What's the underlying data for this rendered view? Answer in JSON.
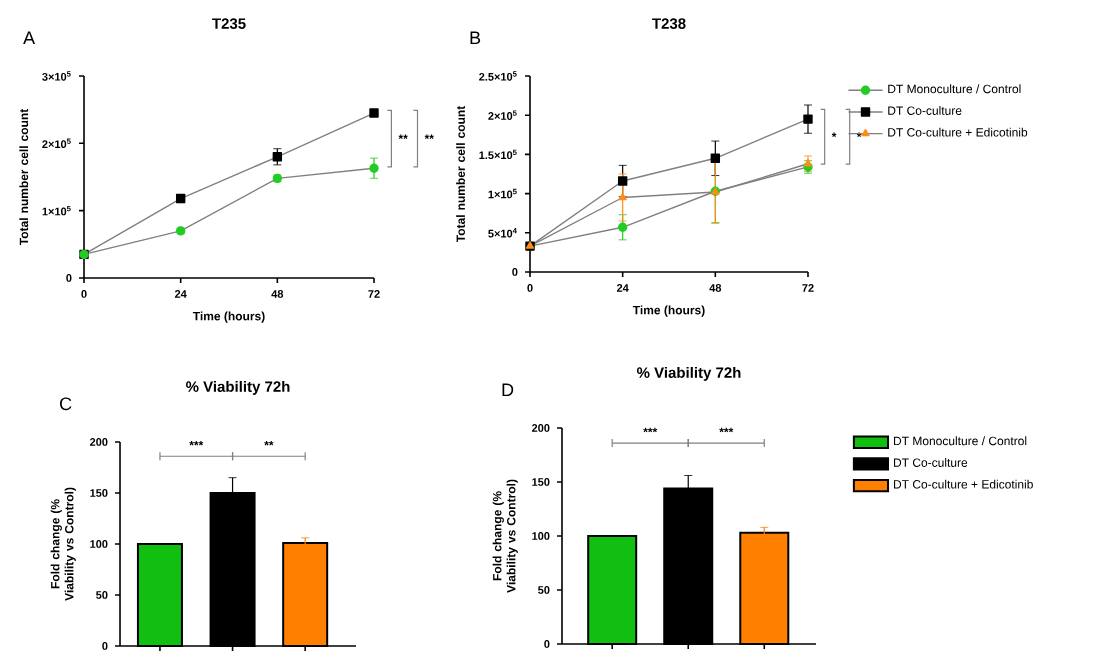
{
  "chart_data": [
    {
      "type": "line",
      "title": "T235",
      "xlabel": "Time (hours)",
      "ylabel": "Total number cell count",
      "x": [
        0,
        24,
        48,
        72
      ],
      "xlim": [
        0,
        72
      ],
      "xticks": [
        0,
        24,
        48,
        72
      ],
      "ylim": [
        0,
        300000
      ],
      "yticks": [
        0,
        {
          "value": 100000,
          "label": "1×10$^{5}$"
        },
        {
          "value": 200000,
          "label": "2×10$^{5}$"
        },
        {
          "value": 300000,
          "label": "3×10$^{5}$"
        }
      ],
      "legend": false,
      "series": [
        {
          "color": "#000000",
          "marker": "square",
          "values": [
            35000,
            118000,
            180000,
            245000
          ],
          "errors": [
            null,
            6000,
            12000,
            5000
          ]
        },
        {
          "color": "#22cc22",
          "marker": "circle",
          "values": [
            35000,
            70000,
            148000,
            163000
          ],
          "errors": [
            null,
            4000,
            5000,
            15000
          ]
        }
      ],
      "annotations": [
        "A",
        "**",
        "**"
      ]
    },
    {
      "type": "line",
      "title": "T238",
      "xlabel": "Time (hours)",
      "ylabel": "Total number cell count",
      "x": [
        0,
        24,
        48,
        72
      ],
      "xlim": [
        0,
        72
      ],
      "xticks": [
        0,
        24,
        48,
        72
      ],
      "ylim": [
        0,
        250000
      ],
      "yticks": [
        0,
        {
          "value": 50000,
          "label": "5×10$^{4}$"
        },
        {
          "value": 100000,
          "label": "1×10$^{5}$"
        },
        {
          "value": 150000,
          "label": "1.5×10$^{5}$"
        },
        {
          "value": 200000,
          "label": "2×10$^{5}$"
        },
        {
          "value": 250000,
          "label": "2.5×10$^{5}$"
        }
      ],
      "legend": "right",
      "series": [
        {
          "name": "DT Monoculture / Control",
          "color": "#22cc22",
          "marker": "circle",
          "values": [
            33000,
            57000,
            103000,
            134000
          ],
          "errors": [
            null,
            16000,
            40000,
            8000
          ]
        },
        {
          "name": "DT Co-culture",
          "color": "#000000",
          "marker": "square",
          "values": [
            33000,
            116000,
            145000,
            195000
          ],
          "errors": [
            null,
            20000,
            22000,
            18000
          ]
        },
        {
          "name": "DT Co-culture + Edicotinib",
          "color": "#ff8c1a",
          "marker": "triangle",
          "values": [
            33000,
            95000,
            102000,
            138000
          ],
          "errors": [
            null,
            30000,
            40000,
            10000
          ]
        }
      ],
      "annotations": [
        "B",
        "*",
        "*"
      ]
    },
    {
      "type": "bar",
      "title": "% Viability 72h",
      "ylabel": "Fold change (% Viability vs Control)",
      "categories": [
        null,
        null,
        null
      ],
      "ylim": [
        0,
        200
      ],
      "yticks": [
        0,
        50,
        100,
        150,
        200
      ],
      "legend": false,
      "series": [
        {
          "color": "#11bf11",
          "values": [
            100,
            null,
            null
          ]
        },
        {
          "color": "#000000",
          "values": [
            null,
            150,
            null
          ],
          "errors": [
            null,
            15,
            null
          ]
        },
        {
          "color": "#ff8000",
          "values": [
            null,
            null,
            101
          ],
          "errors": [
            null,
            null,
            5
          ]
        }
      ],
      "annotations": [
        "C",
        "***",
        "**"
      ]
    },
    {
      "type": "bar",
      "title": "% Viability 72h",
      "ylabel": "Fold change (% Viability vs Control)",
      "categories": [
        null,
        null,
        null
      ],
      "ylim": [
        0,
        200
      ],
      "yticks": [
        0,
        50,
        100,
        150,
        200
      ],
      "legend": "right",
      "series": [
        {
          "name": "DT Monoculture / Control",
          "color": "#11bf11",
          "values": [
            100,
            null,
            null
          ]
        },
        {
          "name": "DT Co-culture",
          "color": "#000000",
          "values": [
            null,
            144,
            null
          ],
          "errors": [
            null,
            12,
            null
          ]
        },
        {
          "name": "DT Co-culture + Edicotinib",
          "color": "#ff8000",
          "values": [
            null,
            null,
            103
          ],
          "errors": [
            null,
            null,
            5
          ]
        }
      ],
      "annotations": [
        "D",
        "***",
        "***"
      ]
    }
  ]
}
